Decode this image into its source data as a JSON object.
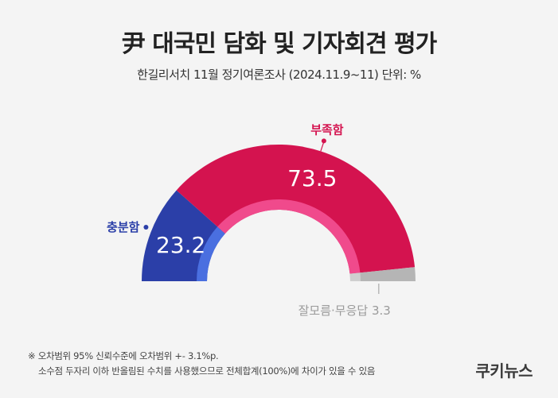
{
  "header": {
    "title": "尹 대국민 담화 및 기자회견 평가",
    "subtitle": "한길리서치 11월 정기여론조사 (2024.11.9~11) 단위: %"
  },
  "chart_data": {
    "type": "pie",
    "shape": "half-donut",
    "unit": "%",
    "categories": [
      "충분함",
      "부족함",
      "잘모름·무응답"
    ],
    "values": [
      23.2,
      73.5,
      3.3
    ],
    "colors": [
      "#2b3fa8",
      "#d4134f",
      "#b5b5b5"
    ],
    "inner_colors": [
      "#4a6fe0",
      "#f04a8c",
      "#cfcfcf"
    ],
    "data_labels": [
      "23.2",
      "73.5",
      "3.3"
    ],
    "label_colors": [
      "#2b3fa8",
      "#d4134f",
      "#9a9a9a"
    ]
  },
  "notes": {
    "line1": "※ 오차범위 95% 신뢰수준에 오차범위 +- 3.1%p.",
    "line2": "소수점 두자리 이하 반올림된 수치를 사용했으므로 전체합계(100%)에 차이가 있을 수 있음"
  },
  "brand": "쿠키뉴스"
}
